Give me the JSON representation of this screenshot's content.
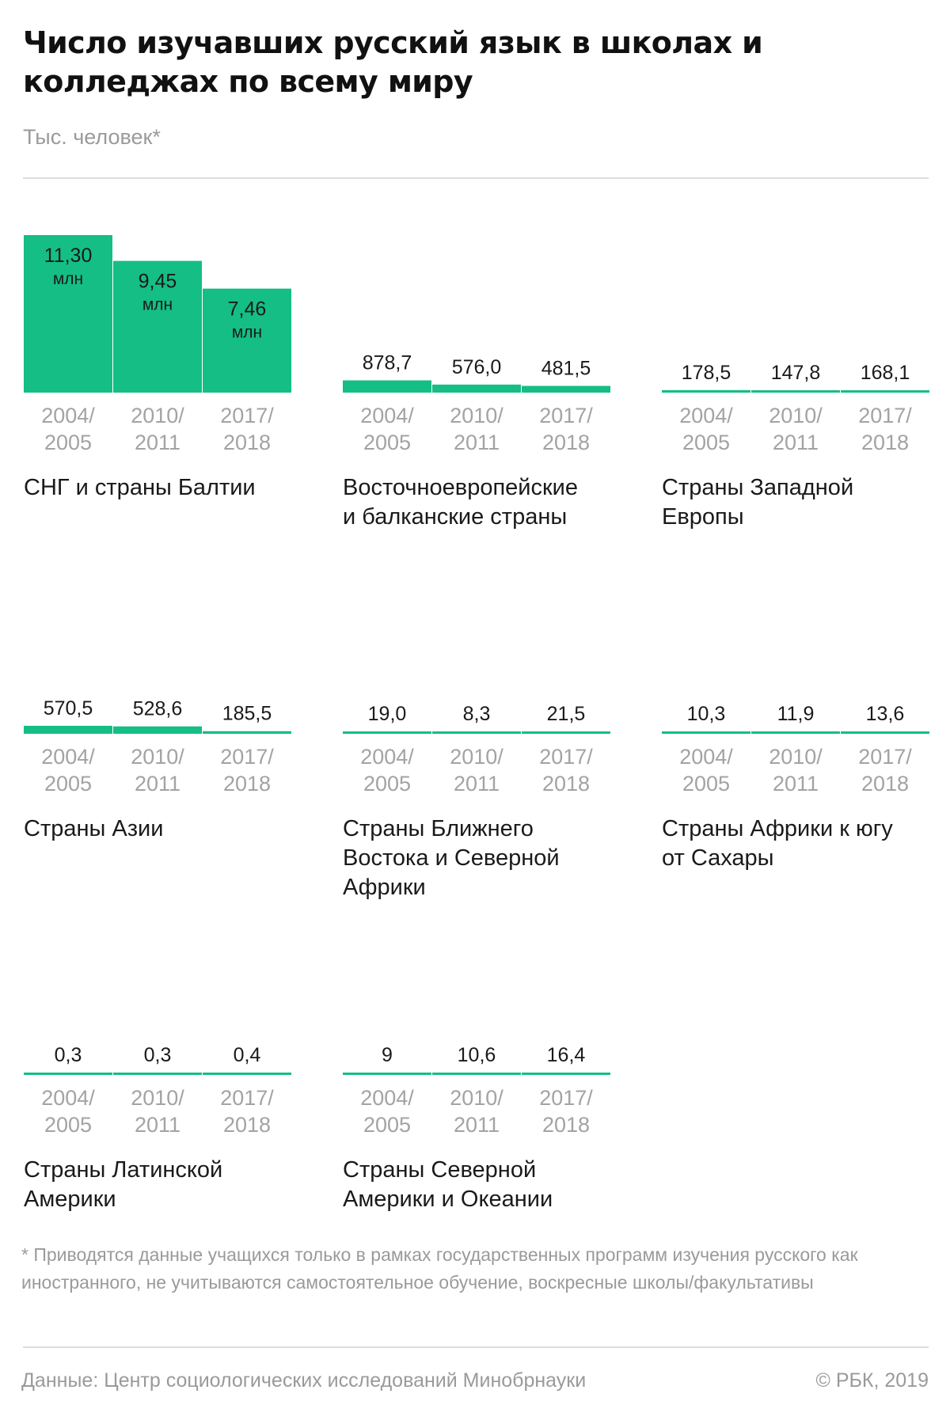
{
  "header": {
    "title": "Число изучавших русский язык в школах и колледжах по всему миру",
    "subtitle": "Тыс. человек*"
  },
  "colors": {
    "accent": "#14be84",
    "muted": "#9a9a9a",
    "rule": "#dddddd"
  },
  "footer": {
    "footnote": "* Приводятся данные учащихся только в рамках государственных программ изучения русского как иностранного, не учитываются самостоятельное обучение, воскресные школы/факультативы",
    "source": "Данные: Центр социологических исследований Минобрнауки",
    "copyright": "© РБК, 2019"
  },
  "chart_data": [
    {
      "type": "bar",
      "title": "СНГ и страны Балтии",
      "categories": [
        "2004/ 2005",
        "2010/ 2011",
        "2017/ 2018"
      ],
      "values": [
        11300,
        9450,
        7460
      ],
      "labels": [
        "11,30",
        "9,45",
        "7,46"
      ],
      "label_unit": "млн"
    },
    {
      "type": "bar",
      "title": "Восточноевропейские и балканские страны",
      "categories": [
        "2004/ 2005",
        "2010/ 2011",
        "2017/ 2018"
      ],
      "values": [
        878.7,
        576.0,
        481.5
      ],
      "labels": [
        "878,7",
        "576,0",
        "481,5"
      ]
    },
    {
      "type": "bar",
      "title": "Страны Западной Европы",
      "categories": [
        "2004/ 2005",
        "2010/ 2011",
        "2017/ 2018"
      ],
      "values": [
        178.5,
        147.8,
        168.1
      ],
      "labels": [
        "178,5",
        "147,8",
        "168,1"
      ]
    },
    {
      "type": "bar",
      "title": "Страны Азии",
      "categories": [
        "2004/ 2005",
        "2010/ 2011",
        "2017/ 2018"
      ],
      "values": [
        570.5,
        528.6,
        185.5
      ],
      "labels": [
        "570,5",
        "528,6",
        "185,5"
      ]
    },
    {
      "type": "bar",
      "title": "Страны Ближнего Востока и Северной Африки",
      "categories": [
        "2004/ 2005",
        "2010/ 2011",
        "2017/ 2018"
      ],
      "values": [
        19.0,
        8.3,
        21.5
      ],
      "labels": [
        "19,0",
        "8,3",
        "21,5"
      ]
    },
    {
      "type": "bar",
      "title": "Страны Африки к югу от Сахары",
      "categories": [
        "2004/ 2005",
        "2010/ 2011",
        "2017/ 2018"
      ],
      "values": [
        10.3,
        11.9,
        13.6
      ],
      "labels": [
        "10,3",
        "11,9",
        "13,6"
      ]
    },
    {
      "type": "bar",
      "title": "Страны Латинской Америки",
      "categories": [
        "2004/ 2005",
        "2010/ 2011",
        "2017/ 2018"
      ],
      "values": [
        0.3,
        0.3,
        0.4
      ],
      "labels": [
        "0,3",
        "0,3",
        "0,4"
      ]
    },
    {
      "type": "bar",
      "title": "Страны Северной Америки и Океании",
      "categories": [
        "2004/ 2005",
        "2010/ 2011",
        "2017/ 2018"
      ],
      "values": [
        9,
        10.6,
        16.4
      ],
      "labels": [
        "9",
        "10,6",
        "16,4"
      ]
    }
  ]
}
